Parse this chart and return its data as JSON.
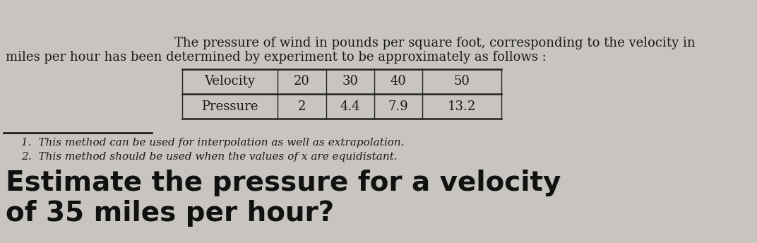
{
  "background_color": "#c8c5c0",
  "para_text_line1": "The pressure of wind in pounds per square foot, corresponding to the velocity in",
  "para_text_line2": "miles per hour has been determined by experiment to be approximately as follows :",
  "table_headers": [
    "Velocity",
    "20",
    "30",
    "40",
    "50"
  ],
  "table_row2": [
    "Pressure",
    "2",
    "4.4",
    "7.9",
    "13.2"
  ],
  "note1": "1.  This method can be used for interpolation as well as extrapolation.",
  "note2": "2.  This method should be used when the values of x are equidistant.",
  "big_text_line1": "Estimate the pressure for a velocity",
  "big_text_line2": "of 35 miles per hour?",
  "para_fontsize": 13,
  "note_fontsize": 11,
  "big_fontsize": 28,
  "table_fontsize": 13
}
